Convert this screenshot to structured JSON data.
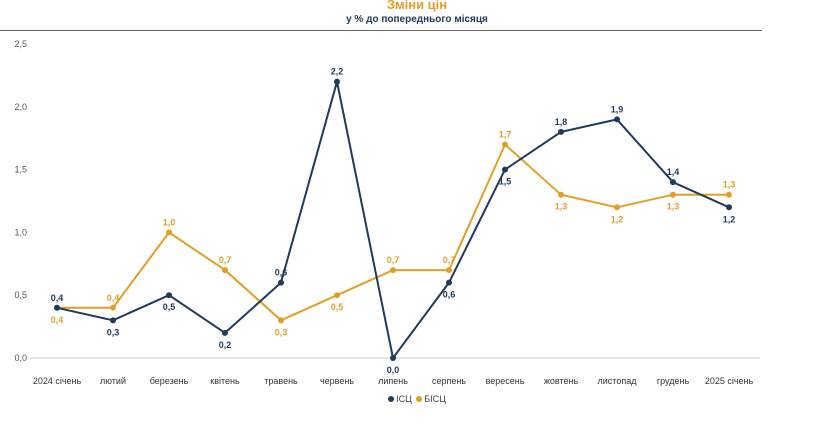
{
  "chart_data": {
    "type": "line",
    "title": "Зміни цін",
    "subtitle": "у % до попереднього місяця",
    "categories": [
      "2024 січень",
      "лютий",
      "березень",
      "квітень",
      "травень",
      "червень",
      "липень",
      "серпень",
      "вересень",
      "жовтень",
      "листопад",
      "грудень",
      "2025 січень"
    ],
    "ylim": [
      0,
      2.5
    ],
    "yticks": [
      0,
      0.5,
      1,
      1.5,
      2,
      2.5
    ],
    "ytick_labels": [
      "0,0",
      "0,5",
      "1,0",
      "1,5",
      "2,0",
      "2,5"
    ],
    "grid": false,
    "legend_position": "bottom-center",
    "series": [
      {
        "name": "ІСЦ",
        "color": "#1F3A5A",
        "values": [
          0.4,
          0.3,
          0.5,
          0.2,
          0.6,
          2.2,
          0.0,
          0.6,
          1.5,
          1.8,
          1.9,
          1.4,
          1.2
        ],
        "labels": [
          "0,4",
          "0,3",
          "0,5",
          "0,2",
          "0,6",
          "2,2",
          "0,0",
          "0,6",
          "1,5",
          "1,8",
          "1,9",
          "1,4",
          "1,2"
        ],
        "label_side": [
          "above",
          "below",
          "below",
          "below",
          "above",
          "above",
          "below",
          "below",
          "below",
          "above",
          "above",
          "above",
          "below"
        ]
      },
      {
        "name": "БІСЦ",
        "color": "#E0A028",
        "values": [
          0.4,
          0.4,
          1.0,
          0.7,
          0.3,
          0.5,
          0.7,
          0.7,
          1.7,
          1.3,
          1.2,
          1.3,
          1.3
        ],
        "labels": [
          "0,4",
          "0,4",
          "1,0",
          "0,7",
          "0,3",
          "0,5",
          "0,7",
          "0,7",
          "1,7",
          "1,3",
          "1,2",
          "1,3",
          "1,3"
        ],
        "label_side": [
          "below",
          "above",
          "above",
          "above",
          "below",
          "below",
          "above",
          "above",
          "above",
          "below",
          "below",
          "below",
          "above"
        ]
      }
    ]
  }
}
